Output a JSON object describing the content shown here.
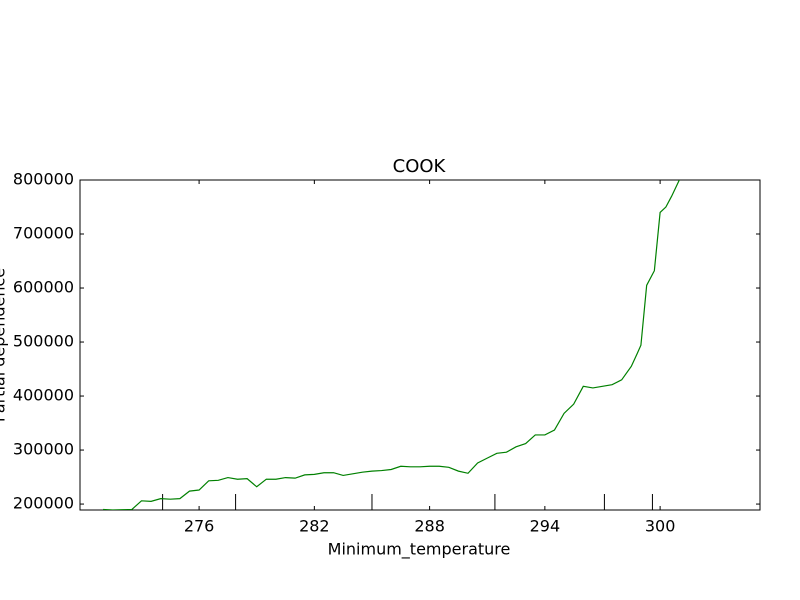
{
  "chart_data": {
    "type": "line",
    "title": "COOK",
    "x_label": "Minimum_temperature",
    "y_label": "Partial dependence",
    "x": [
      271,
      271.5,
      272,
      272.5,
      273,
      273.5,
      274,
      274.5,
      275,
      275.5,
      276,
      276.5,
      277,
      277.5,
      278,
      278.5,
      279,
      279.5,
      280,
      280.5,
      281,
      281.5,
      282,
      282.5,
      283,
      283.5,
      284,
      284.5,
      285,
      285.5,
      286,
      286.5,
      287,
      287.5,
      288,
      288.5,
      289,
      289.5,
      290,
      290.5,
      291,
      291.5,
      292,
      292.5,
      293,
      293.5,
      294,
      294.5,
      295,
      295.5,
      296,
      296.5,
      297,
      297.5,
      298,
      298.5,
      298.8,
      299,
      299.3,
      299.7,
      300,
      300.3,
      300.6,
      301
    ],
    "series": [
      {
        "name": "COOK",
        "color": "#008000",
        "values": [
          190000,
          189000,
          189500,
          190000,
          206000,
          205000,
          210000,
          209000,
          210000,
          224000,
          226000,
          243000,
          244000,
          249000,
          246000,
          247000,
          232000,
          246000,
          246000,
          249000,
          248000,
          254000,
          255000,
          258000,
          258000,
          253000,
          256000,
          259000,
          261000,
          262000,
          264000,
          270000,
          269000,
          269000,
          270000,
          270000,
          268000,
          261000,
          257000,
          276000,
          285000,
          294000,
          296000,
          306000,
          312000,
          328000,
          328000,
          337000,
          368000,
          385000,
          418000,
          415000,
          418000,
          421000,
          430000,
          455000,
          478000,
          494000,
          605000,
          632000,
          740000,
          750000,
          770000,
          800000
        ]
      }
    ],
    "deciles": [
      274.1,
      277.9,
      285.0,
      291.4,
      297.1,
      299.6
    ],
    "xlim": [
      269.8,
      305.2
    ],
    "ylim": [
      189000,
      800000
    ],
    "xticks": [
      276,
      282,
      288,
      294,
      300
    ],
    "yticks": [
      200000,
      300000,
      400000,
      500000,
      600000,
      700000,
      800000
    ]
  }
}
